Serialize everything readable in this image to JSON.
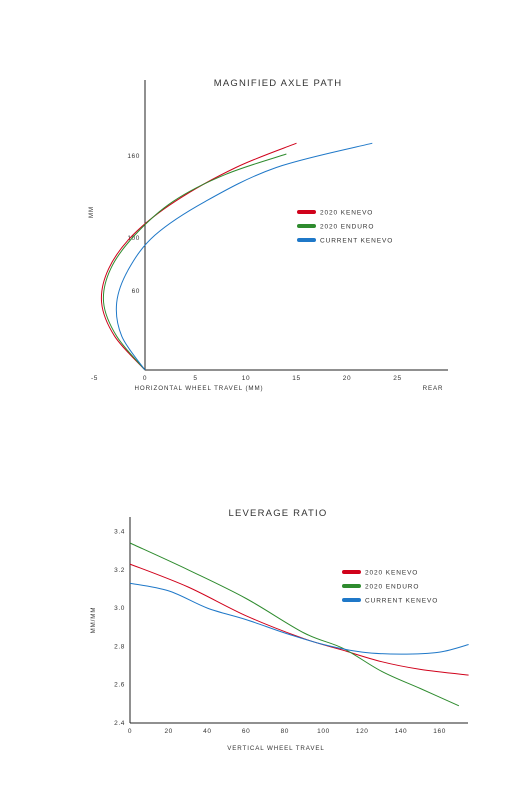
{
  "chart_data": [
    {
      "type": "line",
      "title": "MAGNIFIED AXLE PATH",
      "xlabel": "HORIZONTAL WHEEL TRAVEL (MM)",
      "xlabel_right": "REAR",
      "ylabel": "MM",
      "xlim": [
        -5,
        30
      ],
      "ylim": [
        0,
        185
      ],
      "x_ticks": [
        -5,
        0,
        5,
        10,
        15,
        20,
        25
      ],
      "y_ticks": [
        60,
        100,
        160
      ],
      "legend_position": "right",
      "series": [
        {
          "name": "2020 KENEVO",
          "color": "#d0021b",
          "points": [
            [
              0,
              0
            ],
            [
              -3,
              25
            ],
            [
              -4.3,
              50
            ],
            [
              -3.6,
              75
            ],
            [
              -1.2,
              100
            ],
            [
              3,
              125
            ],
            [
              9,
              150
            ],
            [
              15,
              168
            ]
          ]
        },
        {
          "name": "2020 ENDURO",
          "color": "#2e8b2e",
          "points": [
            [
              0,
              0
            ],
            [
              -2.8,
              25
            ],
            [
              -4.1,
              50
            ],
            [
              -3.4,
              75
            ],
            [
              -1,
              100
            ],
            [
              2.8,
              125
            ],
            [
              8,
              145
            ],
            [
              14,
              160
            ]
          ]
        },
        {
          "name": "CURRENT KENEVO",
          "color": "#1f78c8",
          "points": [
            [
              0,
              0
            ],
            [
              -2.3,
              25
            ],
            [
              -2.8,
              50
            ],
            [
              -1.6,
              75
            ],
            [
              1,
              100
            ],
            [
              6,
              125
            ],
            [
              13,
              150
            ],
            [
              22.5,
              168
            ]
          ]
        }
      ]
    },
    {
      "type": "line",
      "title": "LEVERAGE RATIO",
      "xlabel": "VERTICAL WHEEL TRAVEL",
      "ylabel": "MM/MM",
      "xlim": [
        0,
        175
      ],
      "ylim": [
        2.4,
        3.45
      ],
      "x_ticks": [
        0,
        20,
        40,
        60,
        80,
        100,
        120,
        140,
        160
      ],
      "y_ticks": [
        2.4,
        2.6,
        2.8,
        3.0,
        3.2,
        3.4
      ],
      "legend_position": "right",
      "series": [
        {
          "name": "2020 KENEVO",
          "color": "#d0021b",
          "points": [
            [
              0,
              3.23
            ],
            [
              30,
              3.11
            ],
            [
              60,
              2.96
            ],
            [
              90,
              2.84
            ],
            [
              110,
              2.78
            ],
            [
              130,
              2.72
            ],
            [
              150,
              2.68
            ],
            [
              175,
              2.65
            ]
          ]
        },
        {
          "name": "2020 ENDURO",
          "color": "#2e8b2e",
          "points": [
            [
              0,
              3.34
            ],
            [
              30,
              3.2
            ],
            [
              60,
              3.05
            ],
            [
              90,
              2.87
            ],
            [
              110,
              2.79
            ],
            [
              130,
              2.67
            ],
            [
              150,
              2.58
            ],
            [
              170,
              2.49
            ]
          ]
        },
        {
          "name": "CURRENT KENEVO",
          "color": "#1f78c8",
          "points": [
            [
              0,
              3.13
            ],
            [
              20,
              3.09
            ],
            [
              40,
              3.0
            ],
            [
              60,
              2.94
            ],
            [
              80,
              2.87
            ],
            [
              100,
              2.81
            ],
            [
              120,
              2.77
            ],
            [
              140,
              2.76
            ],
            [
              160,
              2.77
            ],
            [
              175,
              2.81
            ]
          ]
        }
      ]
    }
  ]
}
